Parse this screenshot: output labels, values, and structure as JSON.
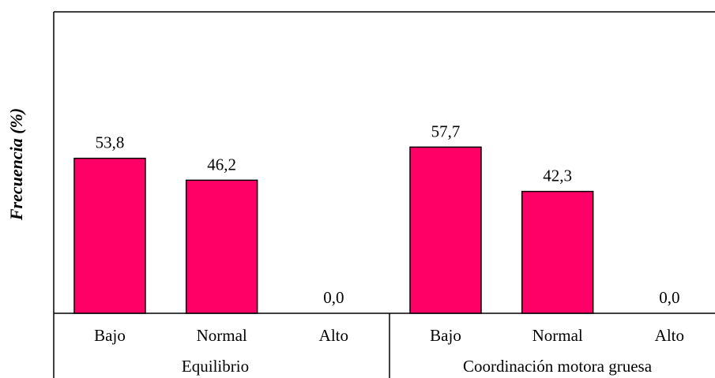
{
  "chart_data": {
    "type": "bar",
    "ylabel": "Frecuencia (%)",
    "ylim": [
      0,
      70
    ],
    "grid": false,
    "legend": "none",
    "color": "#ff0066",
    "groups": [
      {
        "name": "Equilibrio",
        "categories": [
          "Bajo",
          "Normal",
          "Alto"
        ],
        "values": [
          53.8,
          46.2,
          0.0
        ],
        "labels": [
          "53,8",
          "46,2",
          "0,0"
        ]
      },
      {
        "name": "Coordinación motora gruesa",
        "categories": [
          "Bajo",
          "Normal",
          "Alto"
        ],
        "values": [
          57.7,
          42.3,
          0.0
        ],
        "labels": [
          "57,7",
          "42,3",
          "0,0"
        ]
      }
    ]
  }
}
